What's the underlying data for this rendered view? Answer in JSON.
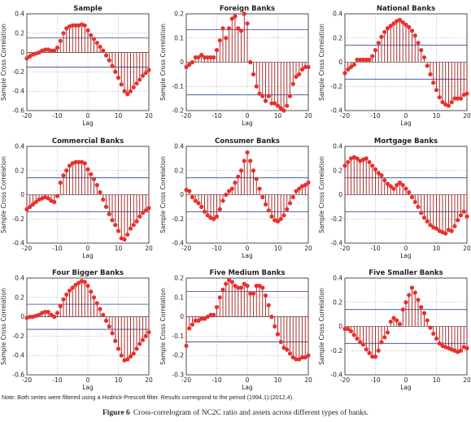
{
  "colors": {
    "stem": "#a01a1a",
    "marker": "#e8302d",
    "bound": "#2b4a8c",
    "axis": "#231f20"
  },
  "note": "Note: Both series were filtered using a Hodrick-Prescott filter. Results correspond to the period (1994,1):(2012,4).",
  "caption": {
    "label": "Figure 6",
    "text": "Cross-correlogram of NC2C ratio and assets across different types of banks."
  },
  "chart_data": [
    {
      "type": "stem",
      "title": "Sample",
      "xlabel": "Lag",
      "ylabel": "Sample Cross Correlation",
      "xlim": [
        -20,
        20
      ],
      "ylim": [
        -0.6,
        0.4
      ],
      "xticks": [
        "-20",
        "-10",
        "0",
        "10",
        "20"
      ],
      "yticks": [
        "-0.6",
        "-0.4",
        "-0.2",
        "0",
        "0.2",
        "0.4"
      ],
      "bounds": [
        0.15,
        -0.15
      ],
      "x": [
        -20,
        -19,
        -18,
        -17,
        -16,
        -15,
        -14,
        -13,
        -12,
        -11,
        -10,
        -9,
        -8,
        -7,
        -6,
        -5,
        -4,
        -3,
        -2,
        -1,
        0,
        1,
        2,
        3,
        4,
        5,
        6,
        7,
        8,
        9,
        10,
        11,
        12,
        13,
        14,
        15,
        16,
        17,
        18,
        19,
        20
      ],
      "y": [
        -0.06,
        -0.04,
        -0.02,
        -0.01,
        0.0,
        0.02,
        0.03,
        0.03,
        0.02,
        0.02,
        0.05,
        0.12,
        0.2,
        0.25,
        0.27,
        0.28,
        0.28,
        0.28,
        0.29,
        0.28,
        0.23,
        0.18,
        0.14,
        0.1,
        0.06,
        0.02,
        -0.03,
        -0.08,
        -0.14,
        -0.2,
        -0.26,
        -0.33,
        -0.4,
        -0.43,
        -0.4,
        -0.36,
        -0.32,
        -0.28,
        -0.24,
        -0.21,
        -0.18
      ]
    },
    {
      "type": "stem",
      "title": "Foreign Banks",
      "xlabel": "Lag",
      "ylabel": "Sample Cross Correlation",
      "xlim": [
        -20,
        20
      ],
      "ylim": [
        -0.2,
        0.2
      ],
      "xticks": [
        "-20",
        "-10",
        "0",
        "10",
        "20"
      ],
      "yticks": [
        "-0.2",
        "-0.1",
        "0",
        "0.1",
        "0.2"
      ],
      "bounds": [
        0.135,
        -0.135
      ],
      "x": [
        -20,
        -19,
        -18,
        -17,
        -16,
        -15,
        -14,
        -13,
        -12,
        -11,
        -10,
        -9,
        -8,
        -7,
        -6,
        -5,
        -4,
        -3,
        -2,
        -1,
        0,
        1,
        2,
        3,
        4,
        5,
        6,
        7,
        8,
        9,
        10,
        11,
        12,
        13,
        14,
        15,
        16,
        17,
        18,
        19,
        20
      ],
      "y": [
        -0.02,
        -0.01,
        0.0,
        0.02,
        0.02,
        0.03,
        0.02,
        0.02,
        0.02,
        0.02,
        0.05,
        0.09,
        0.14,
        0.1,
        0.14,
        0.18,
        0.19,
        0.14,
        0.13,
        0.2,
        0.16,
        0.0,
        -0.05,
        -0.1,
        -0.13,
        -0.14,
        -0.16,
        -0.14,
        -0.17,
        -0.17,
        -0.18,
        -0.19,
        -0.2,
        -0.18,
        -0.14,
        -0.09,
        -0.06,
        -0.05,
        -0.03,
        -0.02,
        -0.02
      ]
    },
    {
      "type": "stem",
      "title": "National Banks",
      "xlabel": "Lag",
      "ylabel": "Sample Cross Correlation",
      "xlim": [
        -20,
        20
      ],
      "ylim": [
        -0.4,
        0.4
      ],
      "xticks": [
        "-20",
        "-10",
        "0",
        "10",
        "20"
      ],
      "yticks": [
        "-0.4",
        "-0.2",
        "0",
        "0.2",
        "0.4"
      ],
      "bounds": [
        0.14,
        -0.14
      ],
      "x": [
        -20,
        -19,
        -18,
        -17,
        -16,
        -15,
        -14,
        -13,
        -12,
        -11,
        -10,
        -9,
        -8,
        -7,
        -6,
        -5,
        -4,
        -3,
        -2,
        -1,
        0,
        1,
        2,
        3,
        4,
        5,
        6,
        7,
        8,
        9,
        10,
        11,
        12,
        13,
        14,
        15,
        16,
        17,
        18,
        19,
        20
      ],
      "y": [
        -0.09,
        -0.06,
        -0.04,
        -0.02,
        0.02,
        0.02,
        0.02,
        0.02,
        0.02,
        0.05,
        0.1,
        0.16,
        0.21,
        0.25,
        0.28,
        0.3,
        0.32,
        0.34,
        0.35,
        0.33,
        0.31,
        0.29,
        0.26,
        0.22,
        0.16,
        0.1,
        0.04,
        -0.03,
        -0.1,
        -0.17,
        -0.23,
        -0.29,
        -0.33,
        -0.35,
        -0.36,
        -0.33,
        -0.3,
        -0.3,
        -0.3,
        -0.27,
        -0.26
      ]
    },
    {
      "type": "stem",
      "title": "Commercial Banks",
      "xlabel": "Lag",
      "ylabel": "Sample Cross Correlation",
      "xlim": [
        -20,
        20
      ],
      "ylim": [
        -0.4,
        0.4
      ],
      "xticks": [
        "-20",
        "-10",
        "0",
        "10",
        "20"
      ],
      "yticks": [
        "-0.4",
        "-0.2",
        "0",
        "0.2",
        "0.4"
      ],
      "bounds": [
        0.14,
        -0.14
      ],
      "x": [
        -20,
        -19,
        -18,
        -17,
        -16,
        -15,
        -14,
        -13,
        -12,
        -11,
        -10,
        -9,
        -8,
        -7,
        -6,
        -5,
        -4,
        -3,
        -2,
        -1,
        0,
        1,
        2,
        3,
        4,
        5,
        6,
        7,
        8,
        9,
        10,
        11,
        12,
        13,
        14,
        15,
        16,
        17,
        18,
        19,
        20
      ],
      "y": [
        -0.12,
        -0.1,
        -0.08,
        -0.06,
        -0.04,
        -0.03,
        -0.02,
        -0.03,
        -0.05,
        -0.06,
        -0.01,
        0.1,
        0.16,
        0.2,
        0.24,
        0.26,
        0.27,
        0.27,
        0.27,
        0.26,
        0.21,
        0.17,
        0.13,
        0.08,
        0.02,
        -0.04,
        -0.1,
        -0.16,
        -0.21,
        -0.25,
        -0.3,
        -0.36,
        -0.37,
        -0.33,
        -0.28,
        -0.25,
        -0.22,
        -0.18,
        -0.15,
        -0.13,
        -0.11
      ]
    },
    {
      "type": "stem",
      "title": "Consumer Banks",
      "xlabel": "Lag",
      "ylabel": "Sample Cross Correlation",
      "xlim": [
        -20,
        20
      ],
      "ylim": [
        -0.4,
        0.4
      ],
      "xticks": [
        "-20",
        "-10",
        "0",
        "10",
        "20"
      ],
      "yticks": [
        "-0.4",
        "-0.2",
        "0",
        "0.2",
        "0.4"
      ],
      "bounds": [
        0.14,
        -0.14
      ],
      "x": [
        -20,
        -19,
        -18,
        -17,
        -16,
        -15,
        -14,
        -13,
        -12,
        -11,
        -10,
        -9,
        -8,
        -7,
        -6,
        -5,
        -4,
        -3,
        -2,
        -1,
        0,
        1,
        2,
        3,
        4,
        5,
        6,
        7,
        8,
        9,
        10,
        11,
        12,
        13,
        14,
        15,
        16,
        17,
        18,
        19,
        20
      ],
      "y": [
        0.04,
        0.03,
        -0.02,
        -0.05,
        -0.07,
        -0.1,
        -0.14,
        -0.17,
        -0.19,
        -0.2,
        -0.18,
        -0.12,
        -0.05,
        0.0,
        0.03,
        0.05,
        0.1,
        0.15,
        0.2,
        0.28,
        0.35,
        0.28,
        0.2,
        0.13,
        0.05,
        -0.02,
        -0.08,
        -0.13,
        -0.18,
        -0.21,
        -0.22,
        -0.2,
        -0.17,
        -0.12,
        -0.07,
        -0.02,
        0.03,
        0.05,
        0.07,
        0.08,
        0.1
      ]
    },
    {
      "type": "stem",
      "title": "Mortgage Banks",
      "xlabel": "Lag",
      "ylabel": "Sample Cross Correlation",
      "xlim": [
        -20,
        20
      ],
      "ylim": [
        -0.4,
        0.4
      ],
      "xticks": [
        "-20",
        "-10",
        "0",
        "10",
        "20"
      ],
      "yticks": [
        "-0.4",
        "-0.2",
        "0",
        "0.2",
        "0.4"
      ],
      "bounds": [
        0.14,
        -0.14
      ],
      "x": [
        -20,
        -19,
        -18,
        -17,
        -16,
        -15,
        -14,
        -13,
        -12,
        -11,
        -10,
        -9,
        -8,
        -7,
        -6,
        -5,
        -4,
        -3,
        -2,
        -1,
        0,
        1,
        2,
        3,
        4,
        5,
        6,
        7,
        8,
        9,
        10,
        11,
        12,
        13,
        14,
        15,
        16,
        17,
        18,
        19,
        20
      ],
      "y": [
        0.24,
        0.27,
        0.3,
        0.31,
        0.3,
        0.28,
        0.29,
        0.3,
        0.27,
        0.24,
        0.21,
        0.18,
        0.16,
        0.12,
        0.09,
        0.07,
        0.05,
        0.08,
        0.1,
        0.08,
        0.05,
        0.02,
        -0.02,
        -0.06,
        -0.1,
        -0.15,
        -0.19,
        -0.22,
        -0.25,
        -0.27,
        -0.28,
        -0.3,
        -0.31,
        -0.32,
        -0.29,
        -0.3,
        -0.26,
        -0.21,
        -0.17,
        -0.14,
        -0.18
      ]
    },
    {
      "type": "stem",
      "title": "Four Bigger Banks",
      "xlabel": "Lag",
      "ylabel": "Sample Cross Correlation",
      "xlim": [
        -20,
        20
      ],
      "ylim": [
        -0.6,
        0.4
      ],
      "xticks": [
        "-20",
        "-10",
        "0",
        "10",
        "20"
      ],
      "yticks": [
        "-0.6",
        "-0.4",
        "-0.2",
        "0",
        "0.2",
        "0.4"
      ],
      "bounds": [
        0.13,
        -0.13
      ],
      "x": [
        -20,
        -19,
        -18,
        -17,
        -16,
        -15,
        -14,
        -13,
        -12,
        -11,
        -10,
        -9,
        -8,
        -7,
        -6,
        -5,
        -4,
        -3,
        -2,
        -1,
        0,
        1,
        2,
        3,
        4,
        5,
        6,
        7,
        8,
        9,
        10,
        11,
        12,
        13,
        14,
        15,
        16,
        17,
        18,
        19,
        20
      ],
      "y": [
        -0.01,
        0.0,
        0.0,
        0.01,
        0.02,
        0.04,
        0.05,
        0.05,
        0.02,
        0.0,
        0.04,
        0.11,
        0.18,
        0.23,
        0.27,
        0.3,
        0.33,
        0.35,
        0.37,
        0.36,
        0.32,
        0.26,
        0.2,
        0.14,
        0.08,
        0.02,
        -0.04,
        -0.1,
        -0.17,
        -0.25,
        -0.33,
        -0.4,
        -0.45,
        -0.44,
        -0.41,
        -0.38,
        -0.33,
        -0.28,
        -0.24,
        -0.2,
        -0.16
      ]
    },
    {
      "type": "stem",
      "title": "Five Medium Banks",
      "xlabel": "Lag",
      "ylabel": "Sample Cross Correlation",
      "xlim": [
        -20,
        20
      ],
      "ylim": [
        -0.3,
        0.2
      ],
      "xticks": [
        "-20",
        "-10",
        "0",
        "10",
        "20"
      ],
      "yticks": [
        "-0.3",
        "-0.2",
        "-0.1",
        "0",
        "0.1",
        "0.2"
      ],
      "bounds": [
        0.13,
        -0.13
      ],
      "x": [
        -20,
        -19,
        -18,
        -17,
        -16,
        -15,
        -14,
        -13,
        -12,
        -11,
        -10,
        -9,
        -8,
        -7,
        -6,
        -5,
        -4,
        -3,
        -2,
        -1,
        0,
        1,
        2,
        3,
        4,
        5,
        6,
        7,
        8,
        9,
        10,
        11,
        12,
        13,
        14,
        15,
        16,
        17,
        18,
        19,
        20
      ],
      "y": [
        -0.15,
        -0.06,
        -0.04,
        -0.02,
        -0.02,
        -0.01,
        -0.01,
        0.0,
        0.01,
        0.01,
        0.05,
        0.1,
        0.14,
        0.17,
        0.19,
        0.18,
        0.16,
        0.15,
        0.15,
        0.17,
        0.16,
        0.12,
        0.12,
        0.16,
        0.16,
        0.15,
        0.11,
        0.06,
        0.0,
        -0.05,
        -0.09,
        -0.13,
        -0.16,
        -0.17,
        -0.19,
        -0.21,
        -0.22,
        -0.22,
        -0.21,
        -0.21,
        -0.2
      ]
    },
    {
      "type": "stem",
      "title": "Five Smaller Banks",
      "xlabel": "Lag",
      "ylabel": "Sample Cross Correlation",
      "xlim": [
        -20,
        20
      ],
      "ylim": [
        -0.4,
        0.4
      ],
      "xticks": [
        "-20",
        "-10",
        "0",
        "10",
        "20"
      ],
      "yticks": [
        "-0.4",
        "-0.2",
        "0",
        "0.2",
        "0.4"
      ],
      "bounds": [
        0.14,
        -0.14
      ],
      "x": [
        -20,
        -19,
        -18,
        -17,
        -16,
        -15,
        -14,
        -13,
        -12,
        -11,
        -10,
        -9,
        -8,
        -7,
        -6,
        -5,
        -4,
        -3,
        -2,
        -1,
        0,
        1,
        2,
        3,
        4,
        5,
        6,
        7,
        8,
        9,
        10,
        11,
        12,
        13,
        14,
        15,
        16,
        17,
        18,
        19,
        20
      ],
      "y": [
        -0.02,
        -0.02,
        -0.04,
        -0.07,
        -0.1,
        -0.13,
        -0.15,
        -0.19,
        -0.22,
        -0.25,
        -0.25,
        -0.2,
        -0.13,
        -0.09,
        -0.05,
        0.04,
        0.07,
        0.05,
        0.02,
        0.14,
        0.2,
        0.26,
        0.32,
        0.28,
        0.22,
        0.16,
        0.11,
        0.05,
        -0.01,
        -0.06,
        -0.1,
        -0.14,
        -0.16,
        -0.17,
        -0.18,
        -0.19,
        -0.2,
        -0.21,
        -0.2,
        -0.17,
        -0.18
      ]
    }
  ]
}
